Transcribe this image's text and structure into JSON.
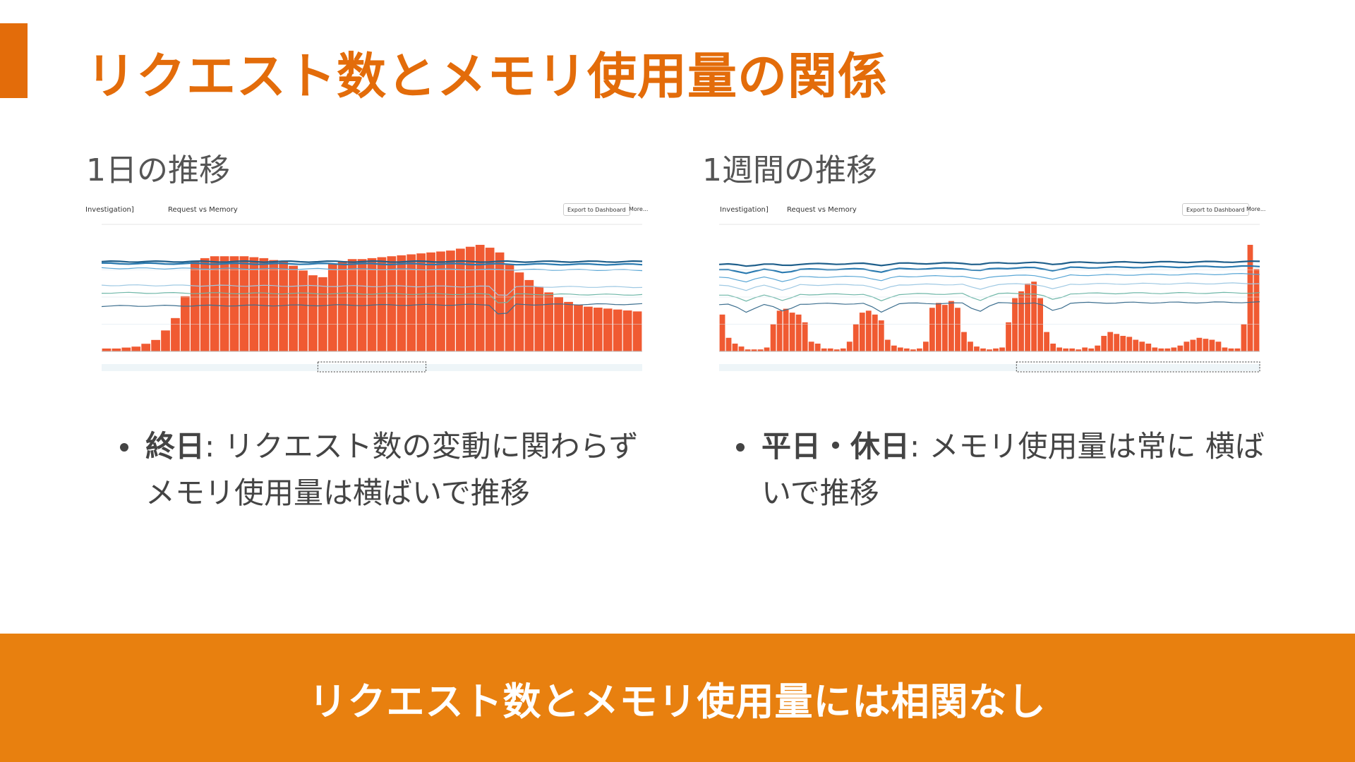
{
  "slide": {
    "title": "リクエスト数とメモリ使用量の関係",
    "accent_color": "#e36c0a",
    "footer_color": "#e8800f",
    "footer_text": "リクエスト数とメモリ使用量には相関なし"
  },
  "left": {
    "subtitle": "1日の推移",
    "bullet_bold": "終日",
    "bullet_text": ": リクエスト数の変動に関わらず メモリ使用量は横ばいで推移"
  },
  "right": {
    "subtitle": "1週間の推移",
    "bullet_bold": "平日・休日",
    "bullet_text": ": メモリ使用量は常に 横ばいで推移"
  },
  "chart_data": [
    {
      "type": "bar",
      "header": {
        "breadcrumb": "Investigation]",
        "name": "Request vs Memory",
        "export_label": "Export to Dashboard",
        "more_label": "More..."
      },
      "bar_color": "#f05a32",
      "line_colors": [
        "#1f5f8b",
        "#2a7ab0",
        "#5aa7d6",
        "#9fc9e3",
        "#6fb7a8",
        "#3d6f8f"
      ],
      "bar_values": [
        3,
        3,
        4,
        5,
        8,
        12,
        22,
        35,
        58,
        95,
        98,
        100,
        100,
        100,
        100,
        99,
        98,
        96,
        95,
        90,
        85,
        80,
        78,
        92,
        95,
        97,
        97,
        98,
        99,
        100,
        101,
        102,
        103,
        104,
        105,
        106,
        108,
        110,
        112,
        109,
        104,
        92,
        83,
        75,
        68,
        62,
        57,
        52,
        49,
        47,
        46,
        45,
        44,
        43,
        42
      ],
      "lines": [
        {
          "start": 95,
          "end": 95,
          "jump": null
        },
        {
          "start": 93,
          "end": 92,
          "jump": null
        },
        {
          "start": 88,
          "end": 86,
          "jump": null
        },
        {
          "start": 70,
          "end": 68,
          "jump": 60
        },
        {
          "start": 62,
          "end": 60,
          "jump": 52
        },
        {
          "start": 48,
          "end": 50,
          "jump": 40
        }
      ]
    },
    {
      "type": "bar",
      "header": {
        "breadcrumb": "Investigation]",
        "name": "Request vs Memory",
        "export_label": "Export to Dashboard",
        "more_label": "More..."
      },
      "bar_color": "#f05a32",
      "line_colors": [
        "#1f5f8b",
        "#2a7ab0",
        "#5aa7d6",
        "#9fc9e3",
        "#6fb7a8",
        "#3d6f8f"
      ],
      "bar_values": [
        38,
        14,
        8,
        5,
        2,
        2,
        2,
        4,
        28,
        42,
        44,
        40,
        38,
        30,
        10,
        8,
        3,
        3,
        2,
        3,
        10,
        28,
        40,
        42,
        38,
        32,
        12,
        6,
        4,
        3,
        2,
        3,
        10,
        45,
        50,
        48,
        52,
        45,
        20,
        10,
        5,
        3,
        2,
        3,
        4,
        30,
        55,
        62,
        70,
        72,
        55,
        20,
        8,
        4,
        3,
        3,
        2,
        4,
        3,
        6,
        16,
        20,
        18,
        16,
        15,
        12,
        10,
        8,
        4,
        3,
        3,
        4,
        6,
        10,
        12,
        14,
        13,
        12,
        10,
        4,
        3,
        3,
        28,
        110,
        85
      ],
      "lines": [
        {
          "start": 92,
          "end": 95
        },
        {
          "start": 86,
          "end": 90
        },
        {
          "start": 78,
          "end": 82
        },
        {
          "start": 70,
          "end": 72
        },
        {
          "start": 60,
          "end": 62
        },
        {
          "start": 50,
          "end": 52
        }
      ]
    }
  ]
}
